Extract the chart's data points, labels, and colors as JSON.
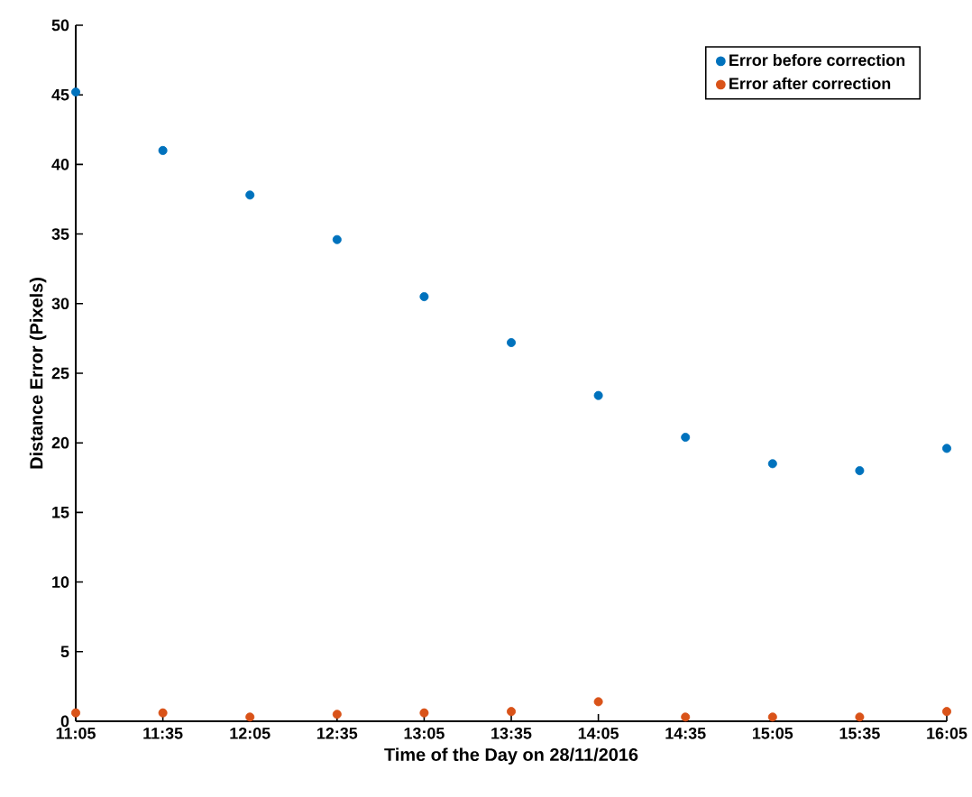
{
  "chart_data": {
    "type": "scatter",
    "xlabel": "Time of the Day on 28/11/2016",
    "ylabel": "Distance Error (Pixels)",
    "categories": [
      "11:05",
      "11:35",
      "12:05",
      "12:35",
      "13:05",
      "13:35",
      "14:05",
      "14:35",
      "15:05",
      "15:35",
      "16:05"
    ],
    "series": [
      {
        "name": "Error before correction",
        "color": "#0072bd",
        "values": [
          45.2,
          41.0,
          37.8,
          34.6,
          30.5,
          27.2,
          23.4,
          20.4,
          18.5,
          18.0,
          19.6
        ]
      },
      {
        "name": "Error after correction",
        "color": "#d95319",
        "values": [
          0.6,
          0.6,
          0.3,
          0.5,
          0.6,
          0.7,
          1.4,
          0.3,
          0.3,
          0.3,
          0.7
        ]
      }
    ],
    "ylim": [
      0,
      50
    ],
    "yticks": [
      0,
      5,
      10,
      15,
      20,
      25,
      30,
      35,
      40,
      45,
      50
    ],
    "legend": "top right",
    "marker": "circle",
    "grid": false
  }
}
